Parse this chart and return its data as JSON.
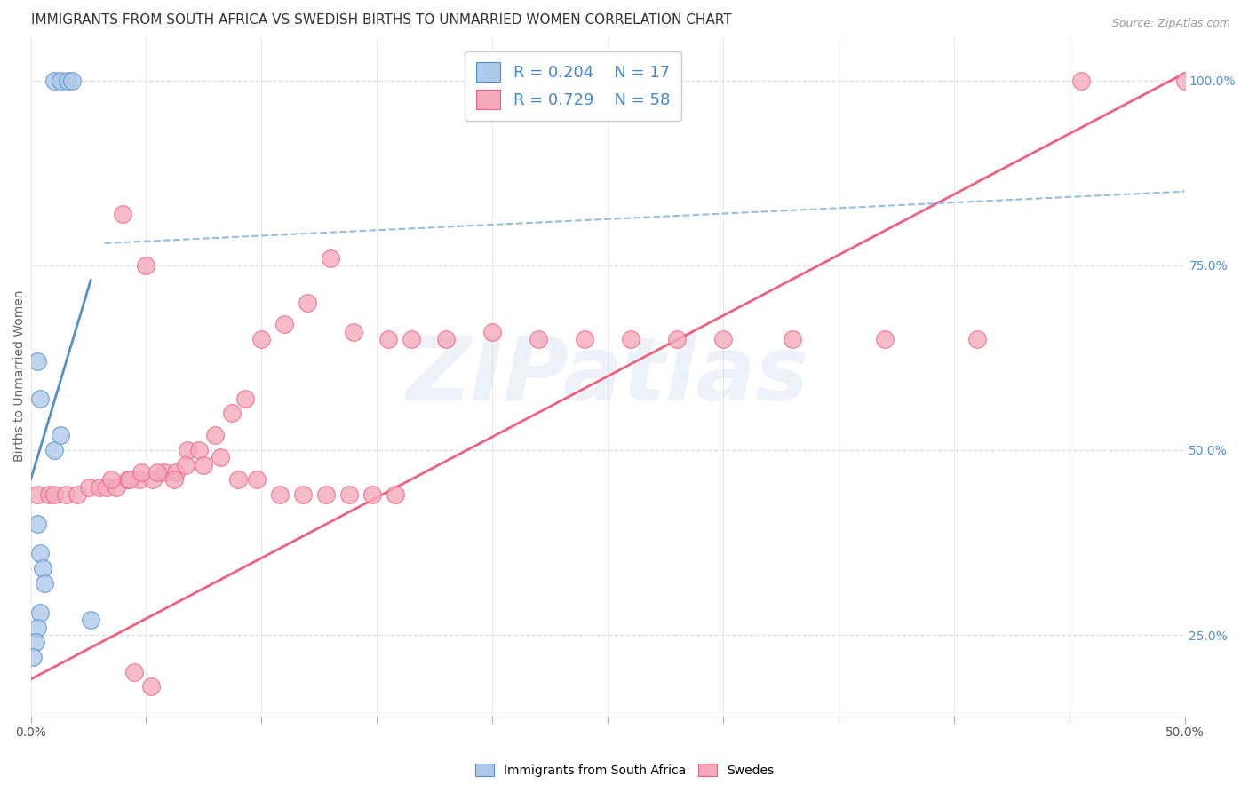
{
  "title": "IMMIGRANTS FROM SOUTH AFRICA VS SWEDISH BIRTHS TO UNMARRIED WOMEN CORRELATION CHART",
  "source": "Source: ZipAtlas.com",
  "ylabel": "Births to Unmarried Women",
  "watermark": "ZIPatlas",
  "legend_blue_r": "R = 0.204",
  "legend_blue_n": "N = 17",
  "legend_pink_r": "R = 0.729",
  "legend_pink_n": "N = 58",
  "legend_label_blue": "Immigrants from South Africa",
  "legend_label_pink": "Swedes",
  "blue_color": "#adc8ea",
  "pink_color": "#f5aabb",
  "blue_line_color": "#5090cc",
  "pink_line_color": "#ee6080",
  "r_n_color": "#4488cc",
  "title_color": "#333333",
  "grid_color": "#dddddd",
  "right_axis_color": "#5090cc",
  "xlim": [
    0.0,
    0.5
  ],
  "ylim": [
    0.14,
    1.06
  ],
  "blue_scatter_x": [
    0.01,
    0.013,
    0.016,
    0.018,
    0.003,
    0.004,
    0.01,
    0.013,
    0.003,
    0.004,
    0.005,
    0.006,
    0.004,
    0.003,
    0.002,
    0.001,
    0.026
  ],
  "blue_scatter_y": [
    1.0,
    1.0,
    1.0,
    1.0,
    0.62,
    0.57,
    0.5,
    0.52,
    0.4,
    0.36,
    0.34,
    0.32,
    0.28,
    0.26,
    0.24,
    0.22,
    0.27
  ],
  "pink_scatter_x": [
    0.003,
    0.008,
    0.01,
    0.015,
    0.02,
    0.025,
    0.03,
    0.033,
    0.037,
    0.042,
    0.047,
    0.053,
    0.058,
    0.063,
    0.068,
    0.073,
    0.08,
    0.087,
    0.093,
    0.1,
    0.11,
    0.12,
    0.13,
    0.14,
    0.155,
    0.165,
    0.18,
    0.2,
    0.22,
    0.24,
    0.26,
    0.28,
    0.3,
    0.33,
    0.37,
    0.41,
    0.455,
    0.5,
    0.035,
    0.043,
    0.048,
    0.055,
    0.062,
    0.067,
    0.075,
    0.082,
    0.09,
    0.098,
    0.108,
    0.118,
    0.128,
    0.138,
    0.148,
    0.158,
    0.04,
    0.05,
    0.045,
    0.052
  ],
  "pink_scatter_y": [
    0.44,
    0.44,
    0.44,
    0.44,
    0.44,
    0.45,
    0.45,
    0.45,
    0.45,
    0.46,
    0.46,
    0.46,
    0.47,
    0.47,
    0.5,
    0.5,
    0.52,
    0.55,
    0.57,
    0.65,
    0.67,
    0.7,
    0.76,
    0.66,
    0.65,
    0.65,
    0.65,
    0.66,
    0.65,
    0.65,
    0.65,
    0.65,
    0.65,
    0.65,
    0.65,
    0.65,
    1.0,
    1.0,
    0.46,
    0.46,
    0.47,
    0.47,
    0.46,
    0.48,
    0.48,
    0.49,
    0.46,
    0.46,
    0.44,
    0.44,
    0.44,
    0.44,
    0.44,
    0.44,
    0.82,
    0.75,
    0.2,
    0.18
  ],
  "blue_line_x": [
    0.0,
    0.026
  ],
  "blue_line_y": [
    0.46,
    0.73
  ],
  "pink_line_x": [
    0.0,
    0.5
  ],
  "pink_line_y": [
    0.19,
    1.01
  ],
  "blue_dashed_line_x": [
    0.032,
    0.5
  ],
  "blue_dashed_line_y": [
    0.78,
    0.85
  ],
  "marker_size": 200,
  "title_fontsize": 11,
  "axis_fontsize": 10,
  "legend_fontsize": 13
}
